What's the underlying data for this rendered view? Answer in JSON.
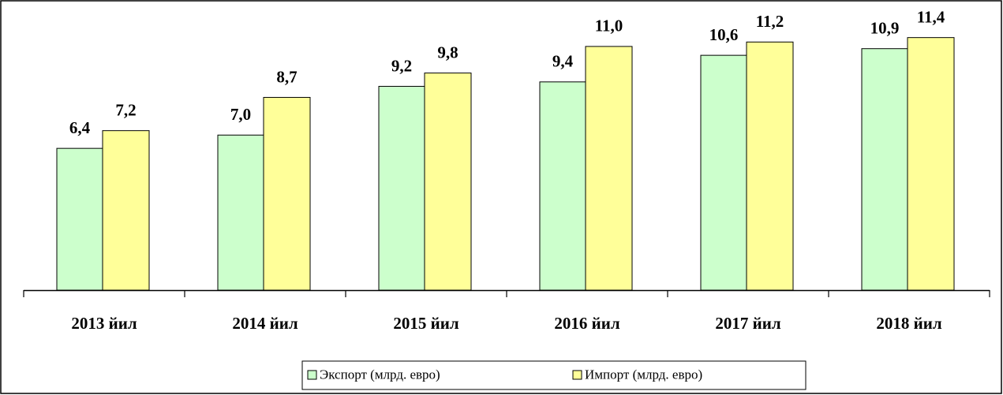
{
  "chart_data": {
    "type": "bar",
    "categories": [
      "2013 йил",
      "2014 йил",
      "2015 йил",
      "2016 йил",
      "2017 йил",
      "2018 йил"
    ],
    "series": [
      {
        "name": "Экспорт (млрд. евро)",
        "color": "#ccffcc",
        "values": [
          6.4,
          7.0,
          9.2,
          9.4,
          10.6,
          10.9
        ],
        "value_labels": [
          "6,4",
          "7,0",
          "9,2",
          "9,4",
          "10,6",
          "10,9"
        ]
      },
      {
        "name": "Импорт (млрд. евро)",
        "color": "#ffff99",
        "values": [
          7.2,
          8.7,
          9.8,
          11.0,
          11.2,
          11.4
        ],
        "value_labels": [
          "7,2",
          "8,7",
          "9,8",
          "11,0",
          "11,2",
          "11,4"
        ]
      }
    ],
    "legend": "bottom"
  }
}
